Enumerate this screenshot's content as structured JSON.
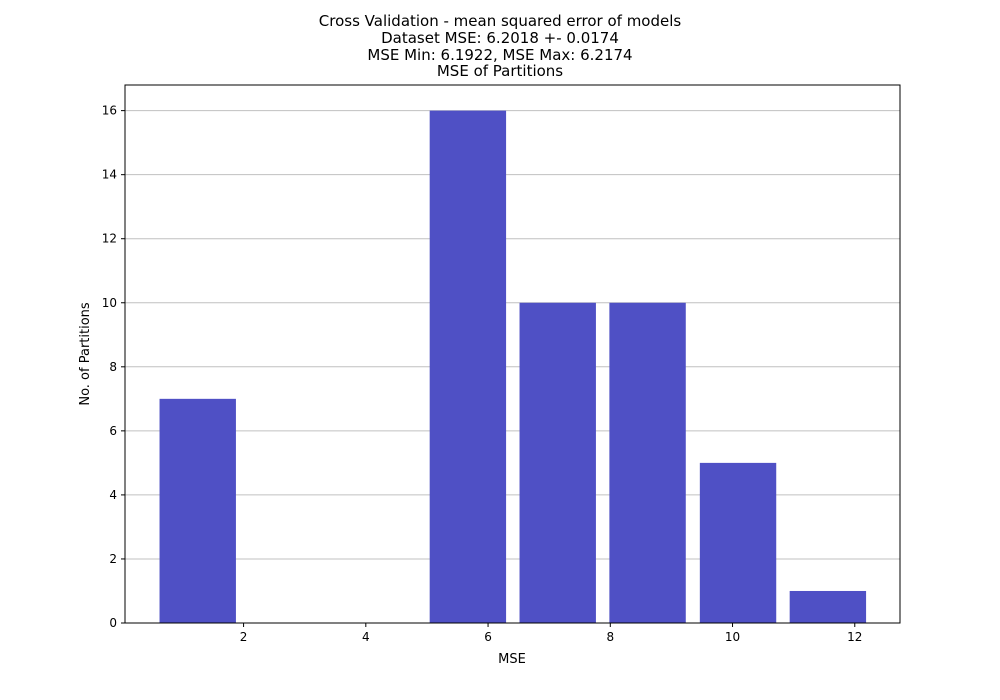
{
  "chart_data": {
    "type": "bar",
    "title_lines": [
      "Cross Validation - mean squared error of models",
      "Dataset MSE: 6.2018 +- 0.0174",
      "MSE Min: 6.1922, MSE Max: 6.2174",
      "MSE of Partitions"
    ],
    "xlabel": "MSE",
    "ylabel": "No. of Partitions",
    "xlim": [
      0.06,
      12.74
    ],
    "ylim": [
      0,
      16.8
    ],
    "xticks": [
      2,
      4,
      6,
      8,
      10,
      12
    ],
    "yticks": [
      0,
      2,
      4,
      6,
      8,
      10,
      12,
      14,
      16
    ],
    "grid": "horizontal",
    "bar_width": 1.25,
    "bar_color": "#4f50c5",
    "bars": [
      {
        "x": 1.25,
        "value": 7
      },
      {
        "x": 2.72,
        "value": 0
      },
      {
        "x": 4.19,
        "value": 0
      },
      {
        "x": 5.67,
        "value": 16
      },
      {
        "x": 7.14,
        "value": 10
      },
      {
        "x": 8.61,
        "value": 10
      },
      {
        "x": 10.09,
        "value": 5
      },
      {
        "x": 11.56,
        "value": 1
      }
    ]
  }
}
